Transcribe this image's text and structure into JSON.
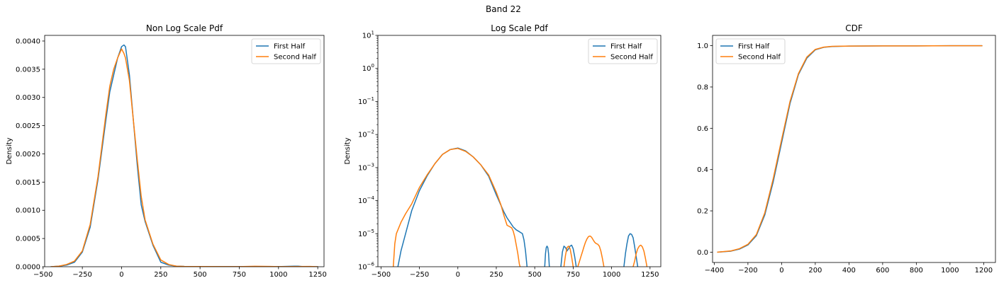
{
  "figure": {
    "suptitle": "Band 22"
  },
  "colors": {
    "first_half": "#1f77b4",
    "second_half": "#ff7f0e"
  },
  "chart_data": [
    {
      "type": "line",
      "title": "Non Log Scale Pdf",
      "xlabel": "",
      "ylabel": "Density",
      "xlim": [
        -490,
        1290
      ],
      "ylim": [
        0,
        0.0041
      ],
      "xticks": [
        -500,
        -250,
        0,
        250,
        500,
        750,
        1000,
        1250
      ],
      "xtick_labels": [
        "−500",
        "−250",
        "0",
        "250",
        "500",
        "750",
        "1000",
        "1250"
      ],
      "yticks": [
        0,
        0.0005,
        0.001,
        0.0015,
        0.002,
        0.0025,
        0.003,
        0.0035,
        0.004
      ],
      "ytick_labels": [
        "0.0000",
        "0.0005",
        "0.0010",
        "0.0015",
        "0.0020",
        "0.0025",
        "0.0030",
        "0.0035",
        "0.0040"
      ],
      "legend": "top-right",
      "grid": false,
      "series": [
        {
          "name": "First Half",
          "x": [
            -450,
            -400,
            -350,
            -300,
            -250,
            -200,
            -150,
            -100,
            -75,
            -50,
            -25,
            0,
            15,
            25,
            50,
            75,
            100,
            125,
            150,
            200,
            250,
            300,
            350,
            400,
            500,
            750,
            1000,
            1100,
            1125,
            1150,
            1250
          ],
          "y": [
            0,
            1e-05,
            3e-05,
            8e-05,
            0.00026,
            0.0007,
            0.00155,
            0.0026,
            0.0031,
            0.0034,
            0.0037,
            0.0039,
            0.00393,
            0.0039,
            0.0034,
            0.0026,
            0.0018,
            0.0011,
            0.0008,
            0.00038,
            8e-05,
            3e-05,
            1e-05,
            5e-06,
            3e-06,
            2e-06,
            2e-06,
            1e-05,
            1e-05,
            3e-06,
            0
          ]
        },
        {
          "name": "Second Half",
          "x": [
            -450,
            -400,
            -350,
            -300,
            -250,
            -200,
            -150,
            -100,
            -75,
            -50,
            -25,
            0,
            15,
            25,
            50,
            75,
            100,
            125,
            150,
            200,
            250,
            300,
            350,
            400,
            500,
            750,
            850,
            1000,
            1200,
            1250
          ],
          "y": [
            0,
            1e-05,
            4e-05,
            0.0001,
            0.00028,
            0.00075,
            0.0016,
            0.0027,
            0.0032,
            0.0035,
            0.0037,
            0.00386,
            0.00378,
            0.0037,
            0.0033,
            0.0026,
            0.0019,
            0.00125,
            0.00083,
            0.0004,
            0.00012,
            4e-05,
            1e-05,
            5e-06,
            3e-06,
            2e-06,
            8e-06,
            2e-06,
            4e-06,
            0
          ]
        }
      ]
    },
    {
      "type": "line",
      "title": "Log Scale Pdf",
      "xlabel": "",
      "ylabel": "Density",
      "yscale": "log",
      "xlim": [
        -520,
        1320
      ],
      "ylim": [
        1e-06,
        10
      ],
      "xticks": [
        -500,
        -250,
        0,
        250,
        500,
        750,
        1000,
        1250
      ],
      "xtick_labels": [
        "−500",
        "−250",
        "0",
        "250",
        "500",
        "750",
        "1000",
        "1250"
      ],
      "yticks": [
        1e-06,
        1e-05,
        0.0001,
        0.001,
        0.01,
        0.1,
        1,
        10
      ],
      "ytick_mantissa": [
        "10",
        "10",
        "10",
        "10",
        "10",
        "10",
        "10",
        "10"
      ],
      "ytick_exponents": [
        "−6",
        "−5",
        "−4",
        "−3",
        "−2",
        "−1",
        "0",
        "1"
      ],
      "legend": "top-right",
      "grid": false,
      "series": [
        {
          "name": "First Half",
          "segments": [
            {
              "x": [
                -390,
                -370,
                -340,
                -300,
                -250,
                -200,
                -150,
                -100,
                -50,
                0,
                50,
                100,
                150,
                200,
                250,
                300,
                320,
                340,
                360,
                380,
                400,
                420,
                430,
                440,
                450
              ],
              "y": [
                1e-06,
                3e-06,
                1e-05,
                5e-05,
                0.0002,
                0.00056,
                0.0013,
                0.0025,
                0.0035,
                0.0039,
                0.0032,
                0.0021,
                0.0012,
                0.00055,
                0.00015,
                4.5e-05,
                3e-05,
                2.2e-05,
                1.6e-05,
                1.3e-05,
                1.15e-05,
                1e-05,
                6.5e-06,
                3e-06,
                1e-06
              ]
            },
            {
              "x": [
                565,
                570,
                575,
                580,
                585,
                590,
                595
              ],
              "y": [
                1e-06,
                2.5e-06,
                3.8e-06,
                4.2e-06,
                3.8e-06,
                2.5e-06,
                1e-06
              ]
            },
            {
              "x": [
                670,
                680,
                690,
                700,
                710,
                720,
                730,
                740,
                750,
                760,
                770
              ],
              "y": [
                1e-06,
                2.8e-06,
                4.2e-06,
                3.8e-06,
                3e-06,
                3.5e-06,
                4.2e-06,
                4.5e-06,
                3.5e-06,
                2e-06,
                1e-06
              ]
            },
            {
              "x": [
                1080,
                1090,
                1100,
                1110,
                1120,
                1130,
                1140,
                1150,
                1160,
                1170
              ],
              "y": [
                1e-06,
                2.5e-06,
                5e-06,
                8.5e-06,
                1e-05,
                9.5e-06,
                7.5e-06,
                4e-06,
                2e-06,
                1e-06
              ]
            }
          ]
        },
        {
          "name": "Second Half",
          "segments": [
            {
              "x": [
                -420,
                -410,
                -400,
                -370,
                -340,
                -300,
                -250,
                -200,
                -150,
                -100,
                -50,
                0,
                50,
                100,
                150,
                200,
                250,
                280,
                300,
                320,
                340,
                350,
                360,
                370,
                380,
                390,
                400,
                405
              ],
              "y": [
                1e-06,
                5e-06,
                1e-05,
                2.2e-05,
                4e-05,
                8e-05,
                0.00025,
                0.0006,
                0.0013,
                0.0025,
                0.0035,
                0.0038,
                0.0031,
                0.0021,
                0.0012,
                0.0006,
                0.00018,
                7.5e-05,
                3.5e-05,
                1.8e-05,
                1.6e-05,
                1.5e-05,
                1.2e-05,
                8e-06,
                4.5e-06,
                2.5e-06,
                1.2e-06,
                1e-06
              ]
            },
            {
              "x": [
                690,
                700,
                710,
                720,
                730,
                740,
                750
              ],
              "y": [
                1e-06,
                2.2e-06,
                3.8e-06,
                4.2e-06,
                3.5e-06,
                2e-06,
                1e-06
              ]
            },
            {
              "x": [
                780,
                790,
                800,
                810,
                820,
                830,
                840,
                850,
                860,
                870,
                880,
                890,
                900,
                910,
                920,
                930,
                940,
                950
              ],
              "y": [
                1e-06,
                1.4e-06,
                2e-06,
                2.8e-06,
                4e-06,
                5.5e-06,
                7e-06,
                8.2e-06,
                8.5e-06,
                7.8e-06,
                6.5e-06,
                5.5e-06,
                5e-06,
                4.8e-06,
                4.2e-06,
                3e-06,
                1.8e-06,
                1e-06
              ]
            },
            {
              "x": [
                1140,
                1150,
                1160,
                1170,
                1180,
                1190,
                1200,
                1210,
                1220,
                1230
              ],
              "y": [
                1e-06,
                1.5e-06,
                2.5e-06,
                3.5e-06,
                4.2e-06,
                4.5e-06,
                4e-06,
                3e-06,
                1.8e-06,
                1e-06
              ]
            }
          ]
        }
      ]
    },
    {
      "type": "line",
      "title": "CDF",
      "xlabel": "",
      "ylabel": "",
      "xlim": [
        -410,
        1270
      ],
      "ylim": [
        -0.05,
        1.05
      ],
      "xticks": [
        -400,
        -200,
        0,
        200,
        400,
        600,
        800,
        1000,
        1200
      ],
      "xtick_labels": [
        "−400",
        "−200",
        "0",
        "200",
        "400",
        "600",
        "800",
        "1000",
        "1200"
      ],
      "yticks": [
        0,
        0.2,
        0.4,
        0.6,
        0.8,
        1.0
      ],
      "ytick_labels": [
        "0.0",
        "0.2",
        "0.4",
        "0.6",
        "0.8",
        "1.0"
      ],
      "legend": "top-left",
      "grid": false,
      "series": [
        {
          "name": "First Half",
          "x": [
            -380,
            -300,
            -250,
            -200,
            -150,
            -100,
            -50,
            0,
            50,
            100,
            150,
            200,
            250,
            300,
            400,
            600,
            800,
            1000,
            1190
          ],
          "y": [
            0,
            0.005,
            0.015,
            0.035,
            0.08,
            0.18,
            0.34,
            0.53,
            0.72,
            0.86,
            0.94,
            0.98,
            0.992,
            0.996,
            0.998,
            0.999,
            0.999,
            1.0,
            1.0
          ]
        },
        {
          "name": "Second Half",
          "x": [
            -380,
            -300,
            -250,
            -200,
            -150,
            -100,
            -50,
            0,
            50,
            100,
            150,
            200,
            250,
            300,
            400,
            600,
            800,
            1000,
            1190
          ],
          "y": [
            0,
            0.006,
            0.017,
            0.038,
            0.085,
            0.19,
            0.355,
            0.545,
            0.73,
            0.865,
            0.945,
            0.982,
            0.993,
            0.997,
            0.998,
            0.999,
            0.999,
            1.0,
            1.0
          ]
        }
      ]
    }
  ]
}
